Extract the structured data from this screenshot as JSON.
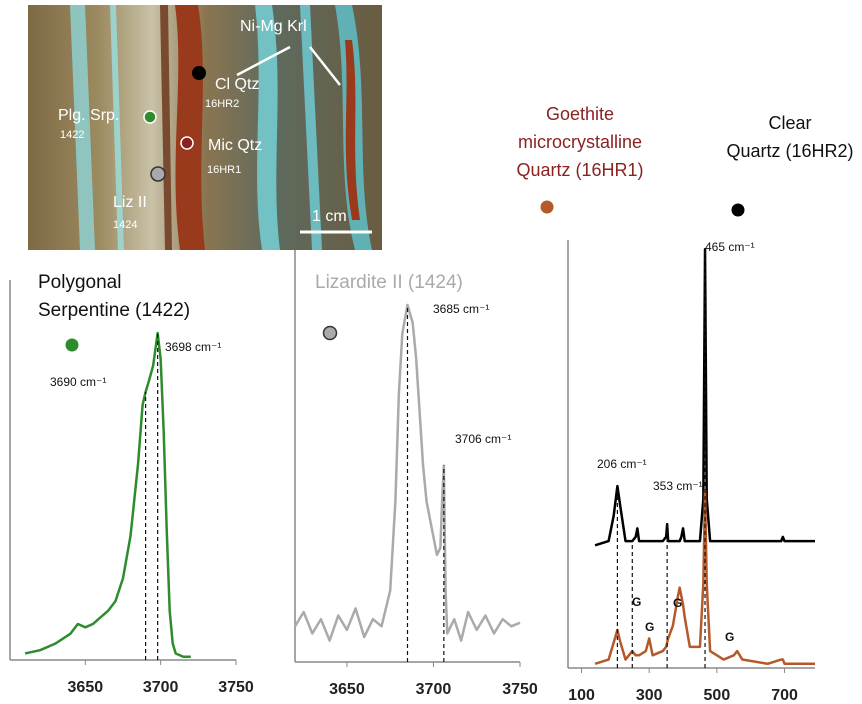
{
  "photo": {
    "labels": [
      "Ni-Mg Krl",
      "Cl Qtz",
      "16HR2",
      "Plg. Srp.",
      "1422",
      "Mic Qtz",
      "16HR1",
      "Liz II",
      "1424",
      "1 cm"
    ]
  },
  "chart_data": [
    {
      "type": "line",
      "title": [
        "Polygonal",
        "Serpentine (1422)"
      ],
      "xlim": [
        3600,
        3750
      ],
      "xticks": [
        3650,
        3700,
        3750
      ],
      "ylim": [
        0,
        100
      ],
      "x": [
        3610,
        3620,
        3630,
        3640,
        3645,
        3650,
        3655,
        3660,
        3665,
        3670,
        3675,
        3680,
        3685,
        3688,
        3690,
        3692,
        3695,
        3698,
        3700,
        3702,
        3704,
        3706,
        3708,
        3710,
        3715,
        3720
      ],
      "series": [
        {
          "color": "#2e8b2e",
          "values": [
            2,
            3,
            5,
            8,
            11,
            10,
            11,
            13,
            15,
            18,
            25,
            38,
            60,
            78,
            82,
            85,
            90,
            100,
            92,
            70,
            40,
            15,
            5,
            2,
            1,
            1
          ]
        }
      ],
      "reference_lines": [
        3690,
        3698
      ],
      "annotations": [
        {
          "x": 3690,
          "label": "3690 cm⁻¹"
        },
        {
          "x": 3698,
          "label": "3698 cm⁻¹"
        }
      ]
    },
    {
      "type": "line",
      "title": [
        "Lizardite II (1424)"
      ],
      "xlim": [
        3620,
        3750
      ],
      "xticks": [
        3650,
        3700,
        3750
      ],
      "ylim": [
        0,
        100
      ],
      "x": [
        3620,
        3625,
        3630,
        3635,
        3640,
        3645,
        3650,
        3655,
        3660,
        3665,
        3670,
        3675,
        3678,
        3680,
        3682,
        3685,
        3688,
        3690,
        3692,
        3694,
        3696,
        3698,
        3700,
        3702,
        3704,
        3705,
        3706,
        3707,
        3708,
        3712,
        3716,
        3720,
        3725,
        3730,
        3735,
        3740,
        3745,
        3750
      ],
      "series": [
        {
          "color": "#aaaaaa",
          "values": [
            10,
            14,
            8,
            12,
            6,
            13,
            9,
            15,
            7,
            12,
            10,
            20,
            45,
            75,
            92,
            100,
            95,
            85,
            70,
            55,
            45,
            40,
            35,
            30,
            32,
            45,
            55,
            20,
            8,
            12,
            6,
            14,
            9,
            13,
            8,
            12,
            10,
            11
          ]
        }
      ],
      "reference_lines": [
        3685,
        3706
      ],
      "annotations": [
        {
          "x": 3685,
          "label": "3685 cm⁻¹"
        },
        {
          "x": 3706,
          "label": "3706 cm⁻¹"
        }
      ]
    },
    {
      "type": "line",
      "xlim": [
        60,
        790
      ],
      "xticks": [
        100,
        300,
        500,
        700
      ],
      "ylim": [
        0,
        100
      ],
      "x": [
        140,
        180,
        195,
        206,
        215,
        230,
        250,
        260,
        265,
        270,
        290,
        300,
        310,
        340,
        350,
        353,
        356,
        370,
        385,
        390,
        395,
        400,
        405,
        420,
        450,
        460,
        465,
        470,
        480,
        520,
        550,
        560,
        575,
        650,
        690,
        695,
        700,
        790
      ],
      "series": [
        {
          "name": [
            "Clear",
            "Quartz (16HR2)"
          ],
          "color": "#000000",
          "values": [
            29,
            30,
            36,
            43,
            38,
            30,
            30,
            31,
            33,
            30,
            30,
            30,
            30,
            30,
            31,
            34,
            30,
            30,
            30,
            30,
            31,
            33,
            30,
            30,
            30,
            40,
            99,
            40,
            30,
            30,
            30,
            30,
            30,
            30,
            30,
            31,
            30,
            30
          ]
        },
        {
          "name": [
            "Goethite",
            "microcrystalline",
            "Quartz (16HR1)"
          ],
          "color": "#b5592a",
          "values": [
            1,
            2,
            6,
            9,
            6,
            2,
            4,
            3,
            3,
            3,
            4,
            7,
            3,
            4,
            5,
            6,
            7,
            10,
            17,
            19,
            17,
            15,
            12,
            5,
            5,
            20,
            42,
            20,
            4,
            2,
            3,
            4,
            2,
            1,
            2,
            2,
            1,
            1
          ]
        }
      ],
      "reference_lines": [
        206,
        250,
        353,
        465
      ],
      "annotations": [
        {
          "x": 206,
          "label": "206 cm⁻¹"
        },
        {
          "x": 353,
          "label": "353 cm⁻¹"
        },
        {
          "x": 465,
          "label": "465 cm⁻¹"
        },
        {
          "x": 250,
          "label": "G"
        },
        {
          "x": 300,
          "label": "G"
        },
        {
          "x": 390,
          "label": "G"
        },
        {
          "x": 560,
          "label": "G"
        }
      ]
    }
  ]
}
